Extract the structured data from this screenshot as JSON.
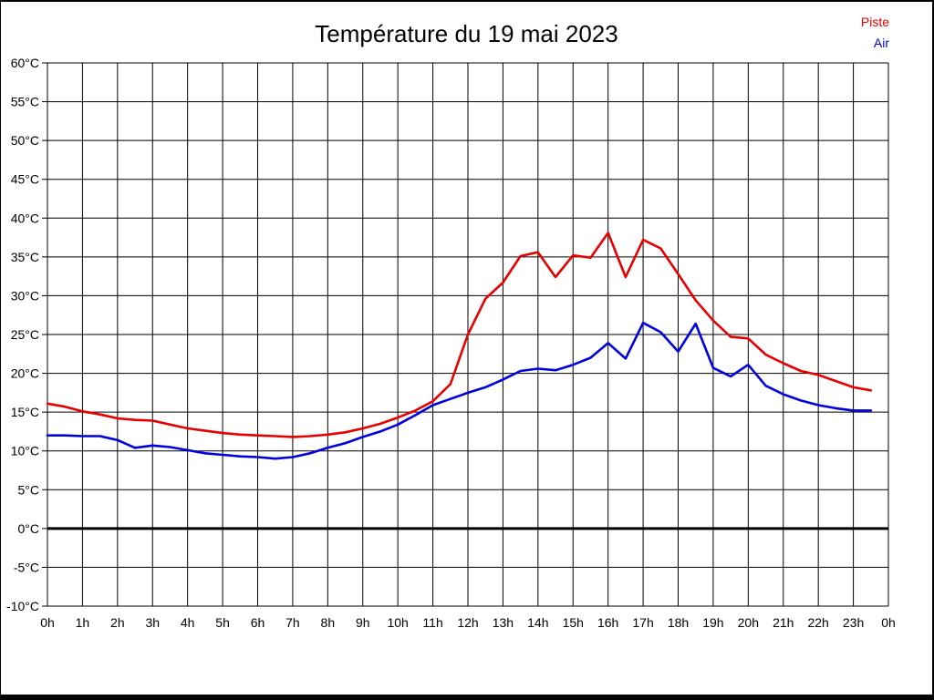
{
  "page": {
    "background": "#ffffff",
    "frame_color": "#000000"
  },
  "chart_data": {
    "type": "line",
    "title": "Température du 19 mai 2023",
    "xlabel": "",
    "ylabel": "",
    "xlim": [
      0,
      24
    ],
    "ylim": [
      -10,
      60
    ],
    "y_tick_step": 5,
    "grid": "on",
    "grid_color": "#000000",
    "zero_line": {
      "value": 0,
      "color": "#000000",
      "width": 3
    },
    "legend_position": "top-right",
    "x_tick_labels": [
      "0h",
      "1h",
      "2h",
      "3h",
      "4h",
      "5h",
      "6h",
      "7h",
      "8h",
      "9h",
      "10h",
      "11h",
      "12h",
      "13h",
      "14h",
      "15h",
      "16h",
      "17h",
      "18h",
      "19h",
      "20h",
      "21h",
      "22h",
      "23h",
      "0h"
    ],
    "y_tick_labels": [
      "60°C",
      "55°C",
      "50°C",
      "45°C",
      "40°C",
      "35°C",
      "30°C",
      "25°C",
      "20°C",
      "15°C",
      "10°C",
      "5°C",
      "0°C",
      "-5°C",
      "-10°C"
    ],
    "x": [
      0,
      0.5,
      1,
      1.5,
      2,
      2.5,
      3,
      3.5,
      4,
      4.5,
      5,
      5.5,
      6,
      6.5,
      7,
      7.5,
      8,
      8.5,
      9,
      9.5,
      10,
      10.5,
      11,
      11.5,
      12,
      12.5,
      13,
      13.5,
      14,
      14.5,
      15,
      15.5,
      16,
      16.5,
      17,
      17.5,
      18,
      18.5,
      19,
      19.5,
      20,
      20.5,
      21,
      21.5,
      22,
      22.5,
      23,
      23.5
    ],
    "series": [
      {
        "name": "Piste",
        "color": "#e60000",
        "values": [
          16.1,
          15.7,
          15.1,
          14.7,
          14.2,
          14.0,
          13.9,
          13.4,
          12.9,
          12.6,
          12.3,
          12.1,
          12.0,
          11.9,
          11.8,
          11.9,
          12.1,
          12.4,
          12.9,
          13.5,
          14.3,
          15.2,
          16.4,
          18.6,
          25.0,
          29.6,
          31.7,
          35.1,
          35.6,
          32.4,
          35.2,
          34.9,
          38.1,
          32.4,
          37.2,
          36.1,
          32.8,
          29.4,
          26.8,
          24.7,
          24.5,
          22.4,
          21.3,
          20.3,
          19.8,
          19.0,
          18.2,
          17.8
        ]
      },
      {
        "name": "Air",
        "color": "#0000dd",
        "values": [
          12.0,
          12.0,
          11.9,
          11.9,
          11.4,
          10.4,
          10.7,
          10.5,
          10.1,
          9.7,
          9.5,
          9.3,
          9.2,
          9.0,
          9.2,
          9.7,
          10.4,
          11.0,
          11.8,
          12.5,
          13.4,
          14.6,
          15.9,
          16.7,
          17.5,
          18.2,
          19.2,
          20.3,
          20.6,
          20.4,
          21.1,
          22.0,
          23.9,
          21.9,
          26.5,
          25.3,
          22.8,
          26.4,
          20.7,
          19.6,
          21.1,
          18.4,
          17.3,
          16.5,
          15.9,
          15.5,
          15.2,
          15.2
        ]
      }
    ]
  }
}
